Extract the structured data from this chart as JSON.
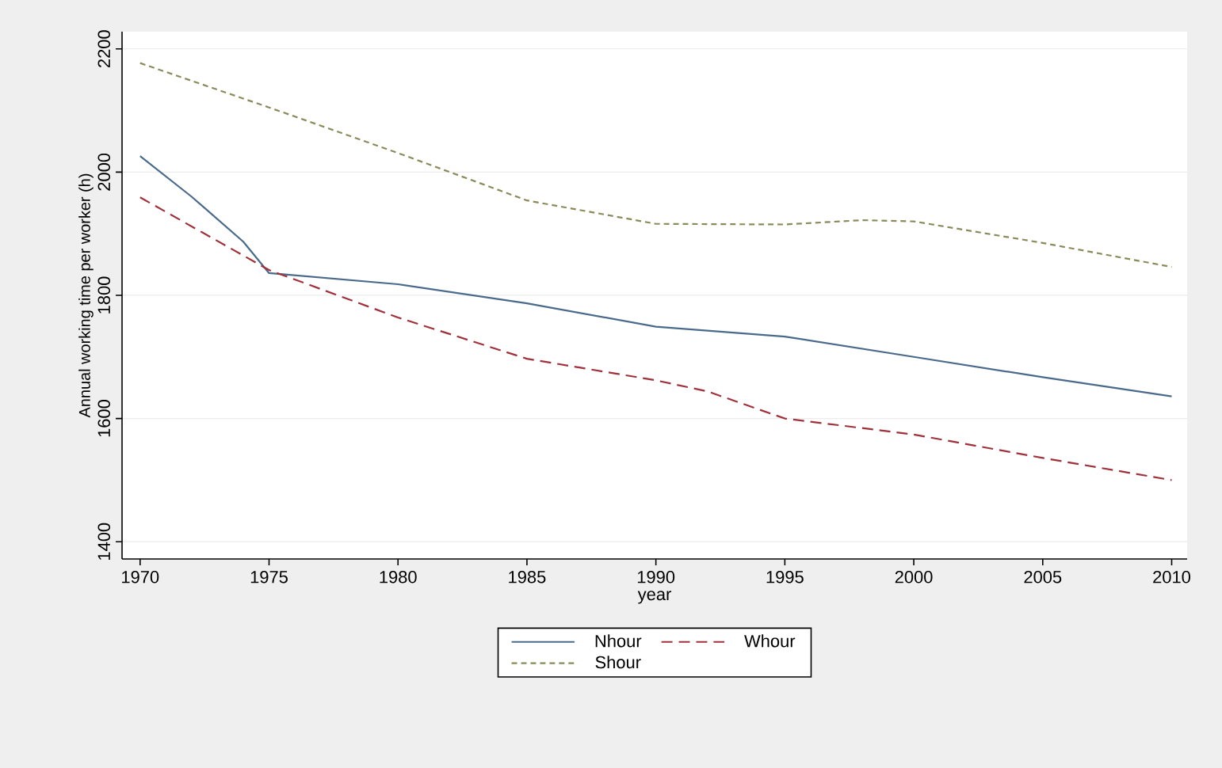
{
  "chart_data": {
    "type": "line",
    "xlabel": "year",
    "ylabel": "Annual working time per worker (h)",
    "xlim": [
      1969.3,
      2010.6
    ],
    "ylim": [
      1372,
      2228
    ],
    "xticks": [
      1970,
      1975,
      1980,
      1985,
      1990,
      1995,
      2000,
      2005,
      2010
    ],
    "yticks": [
      1400,
      1600,
      1800,
      2000,
      2200
    ],
    "grid": "y",
    "legend": "bottom",
    "series": [
      {
        "name": "Nhour",
        "color": "#4a6a8c",
        "line_style": "solid",
        "x": [
          1970,
          1972,
          1974,
          1975,
          1980,
          1985,
          1990,
          1995,
          2000,
          2005,
          2010
        ],
        "values": [
          2026,
          1960,
          1887,
          1836,
          1818,
          1787,
          1749,
          1733,
          1700,
          1667,
          1636
        ]
      },
      {
        "name": "Whour",
        "color": "#a0303a",
        "line_style": "dashed",
        "x": [
          1970,
          1975,
          1980,
          1985,
          1990,
          1992,
          1995,
          2000,
          2005,
          2010
        ],
        "values": [
          1959,
          1841,
          1764,
          1697,
          1662,
          1644,
          1600,
          1574,
          1536,
          1500
        ]
      },
      {
        "name": "Shour",
        "color": "#8a8a5a",
        "line_style": "dotted",
        "x": [
          1970,
          1975,
          1980,
          1985,
          1990,
          1995,
          1998,
          2000,
          2005,
          2010
        ],
        "values": [
          2177,
          2105,
          2031,
          1954,
          1916,
          1915,
          1922,
          1920,
          1885,
          1846
        ]
      }
    ]
  }
}
